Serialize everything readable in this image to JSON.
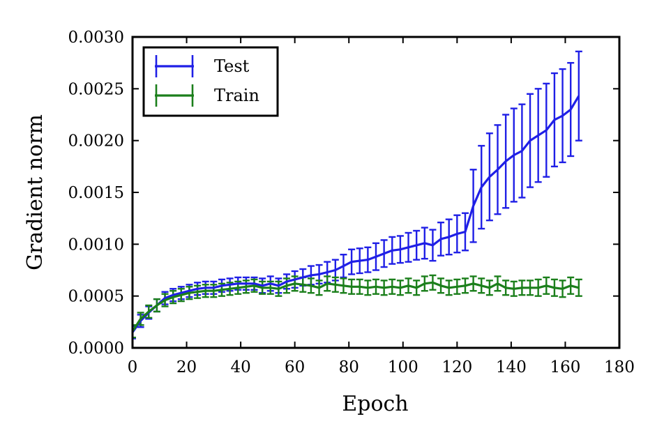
{
  "chart_data": {
    "type": "line",
    "title": "",
    "xlabel": "Epoch",
    "ylabel": "Gradient norm",
    "xlim": [
      0,
      180
    ],
    "ylim": [
      0,
      0.003
    ],
    "x_ticks": [
      "0",
      "20",
      "40",
      "60",
      "80",
      "100",
      "120",
      "140",
      "160",
      "180"
    ],
    "y_ticks": [
      "0.0000",
      "0.0005",
      "0.0010",
      "0.0015",
      "0.0020",
      "0.0025",
      "0.0030"
    ],
    "x_tick_values": [
      0,
      20,
      40,
      60,
      80,
      100,
      120,
      140,
      160,
      180
    ],
    "y_tick_values": [
      0,
      0.0005,
      0.001,
      0.0015,
      0.002,
      0.0025,
      0.003
    ],
    "grid": false,
    "error_bars": true,
    "legend": {
      "placement": "top-left",
      "entries": [
        "Test",
        "Train"
      ]
    },
    "series": [
      {
        "name": "Test",
        "color": "#1f1fe6",
        "x": [
          0,
          3,
          6,
          9,
          12,
          15,
          18,
          21,
          24,
          27,
          30,
          33,
          36,
          39,
          42,
          45,
          48,
          51,
          54,
          57,
          60,
          63,
          66,
          69,
          72,
          75,
          78,
          81,
          84,
          87,
          90,
          93,
          96,
          99,
          102,
          105,
          108,
          111,
          114,
          117,
          120,
          123,
          126,
          129,
          132,
          135,
          138,
          141,
          144,
          147,
          150,
          153,
          156,
          159,
          162,
          165
        ],
        "y": [
          0.00015,
          0.00026,
          0.00034,
          0.00041,
          0.00048,
          0.00051,
          0.00053,
          0.00055,
          0.00057,
          0.00058,
          0.00058,
          0.0006,
          0.00061,
          0.00062,
          0.00062,
          0.00062,
          0.0006,
          0.00062,
          0.0006,
          0.00064,
          0.00066,
          0.00068,
          0.0007,
          0.00071,
          0.00073,
          0.00075,
          0.00079,
          0.00083,
          0.00084,
          0.00085,
          0.00088,
          0.00091,
          0.00094,
          0.00095,
          0.00097,
          0.00099,
          0.00101,
          0.00099,
          0.00105,
          0.00107,
          0.0011,
          0.00112,
          0.00137,
          0.00155,
          0.00165,
          0.00172,
          0.0018,
          0.00186,
          0.0019,
          0.002,
          0.00205,
          0.0021,
          0.0022,
          0.00224,
          0.0023,
          0.00243
        ],
        "err": [
          6e-05,
          6e-05,
          6e-05,
          6e-05,
          6e-05,
          6e-05,
          6e-05,
          6e-05,
          6e-05,
          6e-05,
          6e-05,
          6e-05,
          6e-05,
          6e-05,
          6e-05,
          6e-05,
          7e-05,
          7e-05,
          7e-05,
          7e-05,
          8e-05,
          8e-05,
          9e-05,
          9e-05,
          0.0001,
          0.0001,
          0.00011,
          0.00012,
          0.00012,
          0.00012,
          0.00013,
          0.00013,
          0.00013,
          0.00013,
          0.00014,
          0.00014,
          0.00015,
          0.00015,
          0.00016,
          0.00017,
          0.00018,
          0.00018,
          0.00035,
          0.0004,
          0.00042,
          0.00043,
          0.00045,
          0.00045,
          0.00045,
          0.00045,
          0.00045,
          0.00045,
          0.00045,
          0.00045,
          0.00045,
          0.00043
        ]
      },
      {
        "name": "Train",
        "color": "#1b7f1b",
        "x": [
          0,
          3,
          6,
          9,
          12,
          15,
          18,
          21,
          24,
          27,
          30,
          33,
          36,
          39,
          42,
          45,
          48,
          51,
          54,
          57,
          60,
          63,
          66,
          69,
          72,
          75,
          78,
          81,
          84,
          87,
          90,
          93,
          96,
          99,
          102,
          105,
          108,
          111,
          114,
          117,
          120,
          123,
          126,
          129,
          132,
          135,
          138,
          141,
          144,
          147,
          150,
          153,
          156,
          159,
          162,
          165
        ],
        "y": [
          0.00016,
          0.00028,
          0.00035,
          0.00041,
          0.00046,
          0.00049,
          0.00051,
          0.00053,
          0.00054,
          0.00055,
          0.00055,
          0.00056,
          0.00057,
          0.00058,
          0.00059,
          0.0006,
          0.00058,
          0.00058,
          0.00057,
          0.0006,
          0.00062,
          0.00061,
          0.0006,
          0.00058,
          0.00062,
          0.00061,
          0.0006,
          0.00059,
          0.00059,
          0.00058,
          0.00059,
          0.00058,
          0.00059,
          0.00058,
          0.0006,
          0.00058,
          0.00062,
          0.00063,
          0.0006,
          0.00058,
          0.00059,
          0.0006,
          0.00062,
          0.0006,
          0.00058,
          0.00062,
          0.00058,
          0.00057,
          0.00058,
          0.00058,
          0.00058,
          0.0006,
          0.00058,
          0.00057,
          0.0006,
          0.00058
        ],
        "err": [
          6e-05,
          6e-05,
          6e-05,
          6e-05,
          6e-05,
          6e-05,
          6e-05,
          6e-05,
          6e-05,
          6e-05,
          6e-05,
          6e-05,
          6e-05,
          6e-05,
          6e-05,
          6e-05,
          6e-05,
          6e-05,
          7e-05,
          7e-05,
          7e-05,
          7e-05,
          7e-05,
          7e-05,
          7e-05,
          7e-05,
          7e-05,
          7e-05,
          7e-05,
          7e-05,
          7e-05,
          7e-05,
          7e-05,
          7e-05,
          7e-05,
          7e-05,
          7e-05,
          7e-05,
          7e-05,
          7e-05,
          7e-05,
          7e-05,
          7e-05,
          7e-05,
          7e-05,
          7e-05,
          7e-05,
          7e-05,
          7e-05,
          7e-05,
          8e-05,
          8e-05,
          8e-05,
          8e-05,
          8e-05,
          8e-05
        ]
      }
    ]
  }
}
